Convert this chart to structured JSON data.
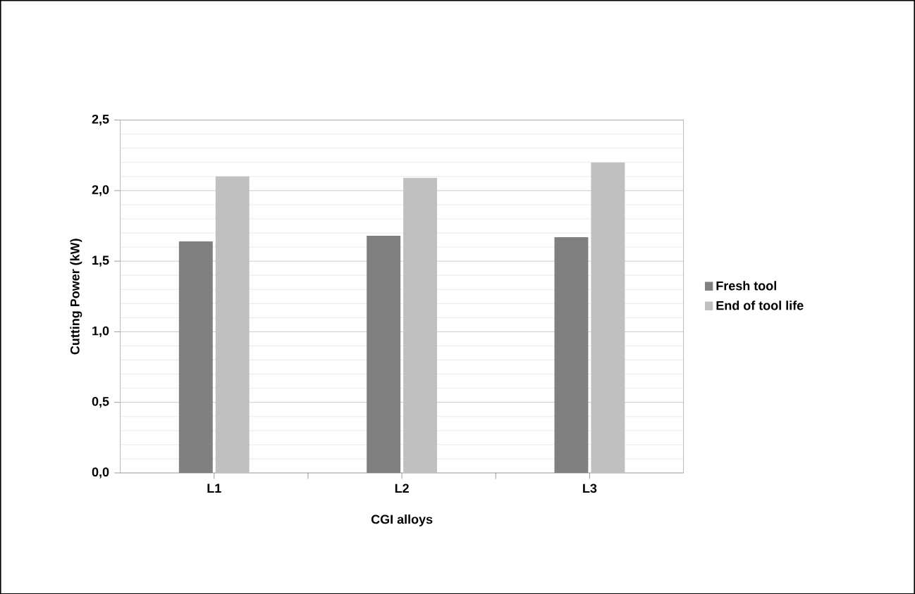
{
  "chart_data": {
    "type": "bar",
    "xlabel": "CGI alloys",
    "ylabel": "Cutting Power (kW)",
    "categories": [
      "L1",
      "L2",
      "L3"
    ],
    "series": [
      {
        "name": "Fresh tool",
        "color": "#808080",
        "values": [
          1.64,
          1.68,
          1.67
        ]
      },
      {
        "name": "End of tool life",
        "color": "#c0c0c0",
        "values": [
          2.1,
          2.09,
          2.2
        ]
      }
    ],
    "ylim": [
      0,
      2.5
    ],
    "yticks": [
      {
        "value": 0,
        "label": "0,0"
      },
      {
        "value": 0.5,
        "label": "0,5"
      },
      {
        "value": 1.0,
        "label": "1,0"
      },
      {
        "value": 1.5,
        "label": "1,5"
      },
      {
        "value": 2.0,
        "label": "2,0"
      },
      {
        "value": 2.5,
        "label": "2,5"
      }
    ],
    "grid": "y",
    "legend": "right"
  }
}
